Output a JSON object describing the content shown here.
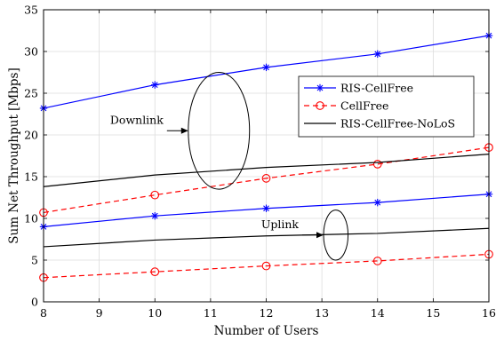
{
  "chart_data": {
    "type": "line",
    "xlabel": "Number of Users",
    "ylabel": "Sum Net Throughput [Mbps]",
    "xlim": [
      8,
      16
    ],
    "ylim": [
      0,
      35
    ],
    "xticks": [
      8,
      9,
      10,
      11,
      12,
      13,
      14,
      15,
      16
    ],
    "yticks": [
      0,
      5,
      10,
      15,
      20,
      25,
      30,
      35
    ],
    "grid": true,
    "legend_position": "right",
    "legend": [
      {
        "label": "RIS-CellFree",
        "color": "#0000ff",
        "dash": "solid",
        "marker": "asterisk"
      },
      {
        "label": "CellFree",
        "color": "#ff0000",
        "dash": "dashed",
        "marker": "circle"
      },
      {
        "label": "RIS-CellFree-NoLoS",
        "color": "#000000",
        "dash": "solid",
        "marker": "none"
      }
    ],
    "series": [
      {
        "group": "Downlink",
        "legend_index": 0,
        "color": "#0000ff",
        "dash": "solid",
        "marker": "asterisk",
        "x": [
          8,
          10,
          12,
          14,
          16
        ],
        "y": [
          23.2,
          26.0,
          28.1,
          29.7,
          31.9
        ]
      },
      {
        "group": "Downlink",
        "legend_index": 1,
        "color": "#ff0000",
        "dash": "dashed",
        "marker": "circle",
        "x": [
          8,
          10,
          12,
          14,
          16
        ],
        "y": [
          10.7,
          12.8,
          14.8,
          16.5,
          18.5
        ]
      },
      {
        "group": "Downlink",
        "legend_index": 2,
        "color": "#000000",
        "dash": "solid",
        "marker": "none",
        "x": [
          8,
          10,
          12,
          14,
          16
        ],
        "y": [
          13.8,
          15.2,
          16.1,
          16.7,
          17.7
        ]
      },
      {
        "group": "Uplink",
        "legend_index": 0,
        "color": "#0000ff",
        "dash": "solid",
        "marker": "asterisk",
        "x": [
          8,
          10,
          12,
          14,
          16
        ],
        "y": [
          9.0,
          10.3,
          11.2,
          11.9,
          12.9
        ]
      },
      {
        "group": "Uplink",
        "legend_index": 1,
        "color": "#ff0000",
        "dash": "dashed",
        "marker": "circle",
        "x": [
          8,
          10,
          12,
          14,
          16
        ],
        "y": [
          2.9,
          3.6,
          4.3,
          4.9,
          5.7
        ]
      },
      {
        "group": "Uplink",
        "legend_index": 2,
        "color": "#000000",
        "dash": "solid",
        "marker": "none",
        "x": [
          8,
          10,
          12,
          14,
          16
        ],
        "y": [
          6.6,
          7.4,
          7.9,
          8.2,
          8.8
        ]
      }
    ],
    "annotations": [
      {
        "text": "Downlink",
        "ellipse_center": [
          11.15,
          20.5
        ],
        "ellipse_half_width": 0.55,
        "ellipse_half_height": 7.0
      },
      {
        "text": "Uplink",
        "ellipse_center": [
          13.25,
          8.0
        ],
        "ellipse_half_width": 0.22,
        "ellipse_half_height": 3.0
      }
    ]
  }
}
